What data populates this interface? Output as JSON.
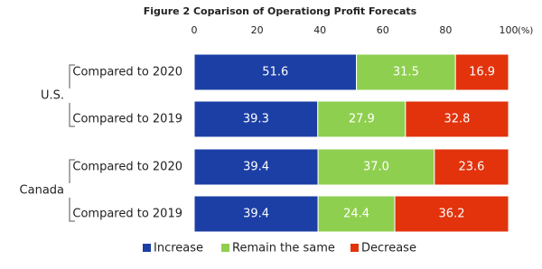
{
  "chart_data": {
    "type": "stacked_bar_horizontal",
    "title": "Figure 2 Coparison of Operationg Profit Forecats",
    "x_unit": "(%)",
    "groups": [
      {
        "name": "U.S.",
        "categories": [
          "Compared to 2020",
          "Compared to 2019"
        ]
      },
      {
        "name": "Canada",
        "categories": [
          "Compared to 2020",
          "Compared to 2019"
        ]
      }
    ],
    "series": [
      {
        "name": "Increase",
        "color": "#1c3fa6",
        "values": [
          51.6,
          39.3,
          39.4,
          39.4
        ],
        "value_labels": [
          "51.6",
          "39.3",
          "39.4",
          "39.4"
        ]
      },
      {
        "name": "Remain the same",
        "color": "#8fcf4f",
        "values": [
          31.5,
          27.9,
          37.0,
          24.4
        ],
        "value_labels": [
          "31.5",
          "27.9",
          "37.0",
          "24.4"
        ]
      },
      {
        "name": "Decrease",
        "color": "#e2330d",
        "values": [
          16.9,
          32.8,
          23.6,
          36.2
        ],
        "value_labels": [
          "16.9",
          "32.8",
          "23.6",
          "36.2"
        ]
      }
    ],
    "xlim": [
      0,
      100
    ],
    "xticks": [
      0,
      20,
      40,
      60,
      80,
      100
    ],
    "grid": false,
    "legend": "bottom"
  }
}
